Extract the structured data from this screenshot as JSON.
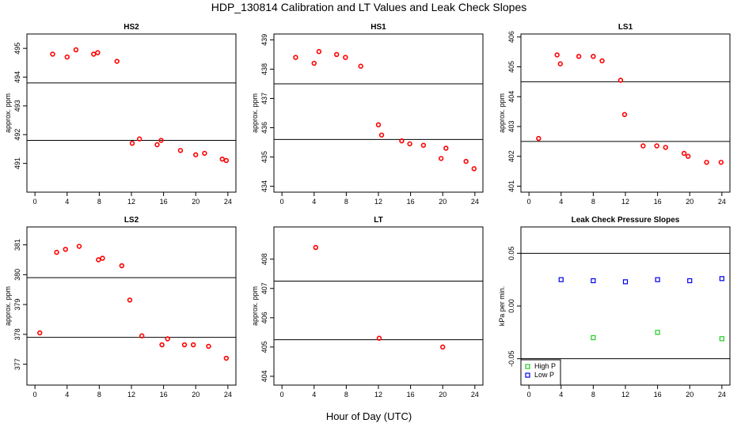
{
  "title": "HDP_130814  Calibration and LT Values and Leak Check Slopes",
  "xlabel": "Hour of Day (UTC)",
  "chart_data": [
    {
      "type": "scatter",
      "name": "HS2",
      "title": "HS2",
      "ylabel": "approx. ppm",
      "xlim": [
        -1,
        25
      ],
      "ylim": [
        490,
        495.5
      ],
      "xticks": [
        "0",
        "4",
        "8",
        "12",
        "16",
        "20",
        "24"
      ],
      "yticks": [
        "491",
        "492",
        "493",
        "494",
        "495"
      ],
      "hlines": [
        493.8,
        491.8
      ],
      "series": [
        {
          "name": "values",
          "color": "#ff0000",
          "x": [
            2.2,
            4.0,
            5.1,
            7.3,
            7.8,
            10.2,
            12.1,
            13.0,
            15.2,
            15.7,
            18.1,
            20.0,
            21.1,
            23.3,
            23.8
          ],
          "y": [
            494.8,
            494.7,
            494.95,
            494.8,
            494.85,
            494.55,
            491.7,
            491.85,
            491.65,
            491.8,
            491.45,
            491.3,
            491.35,
            491.15,
            491.1
          ]
        }
      ]
    },
    {
      "type": "scatter",
      "name": "HS1",
      "title": "HS1",
      "ylabel": "approx. ppm",
      "xlim": [
        -1,
        25
      ],
      "ylim": [
        433.8,
        439.2
      ],
      "xticks": [
        "0",
        "4",
        "8",
        "12",
        "16",
        "20",
        "24"
      ],
      "yticks": [
        "434",
        "435",
        "436",
        "437",
        "438",
        "439"
      ],
      "hlines": [
        437.5,
        435.6
      ],
      "series": [
        {
          "name": "values",
          "color": "#ff0000",
          "x": [
            1.7,
            4.0,
            4.6,
            6.8,
            7.9,
            9.8,
            12.0,
            12.4,
            14.9,
            15.9,
            17.6,
            19.8,
            20.4,
            22.9,
            23.9
          ],
          "y": [
            438.4,
            438.2,
            438.6,
            438.5,
            438.4,
            438.1,
            436.1,
            435.75,
            435.55,
            435.45,
            435.4,
            434.95,
            435.3,
            434.85,
            434.6
          ]
        }
      ]
    },
    {
      "type": "scatter",
      "name": "LS1",
      "title": "LS1",
      "ylabel": "approx. ppm",
      "xlim": [
        -1,
        25
      ],
      "ylim": [
        400.8,
        406.1
      ],
      "xticks": [
        "0",
        "4",
        "8",
        "12",
        "16",
        "20",
        "24"
      ],
      "yticks": [
        "401",
        "402",
        "403",
        "404",
        "405",
        "406"
      ],
      "hlines": [
        404.5,
        402.5
      ],
      "series": [
        {
          "name": "values",
          "color": "#ff0000",
          "x": [
            1.2,
            3.5,
            3.9,
            6.2,
            8.0,
            9.1,
            11.4,
            11.9,
            14.2,
            15.9,
            17.0,
            19.3,
            19.8,
            22.1,
            23.9
          ],
          "y": [
            402.6,
            405.4,
            405.1,
            405.35,
            405.35,
            405.2,
            404.55,
            403.4,
            402.35,
            402.35,
            402.3,
            402.1,
            402.0,
            401.8,
            401.8
          ]
        }
      ]
    },
    {
      "type": "scatter",
      "name": "LS2",
      "title": "LS2",
      "ylabel": "approx. ppm",
      "xlim": [
        -1,
        25
      ],
      "ylim": [
        376.3,
        381.6
      ],
      "xticks": [
        "0",
        "4",
        "8",
        "12",
        "16",
        "20",
        "24"
      ],
      "yticks": [
        "377",
        "378",
        "379",
        "380",
        "381"
      ],
      "hlines": [
        379.9,
        377.9
      ],
      "series": [
        {
          "name": "values",
          "color": "#ff0000",
          "x": [
            0.6,
            2.7,
            3.8,
            5.5,
            7.9,
            8.4,
            10.8,
            11.8,
            13.3,
            15.8,
            16.5,
            18.6,
            19.7,
            21.6,
            23.8
          ],
          "y": [
            378.05,
            380.75,
            380.85,
            380.95,
            380.5,
            380.55,
            380.3,
            379.15,
            377.95,
            377.65,
            377.85,
            377.65,
            377.65,
            377.6,
            377.2
          ]
        }
      ]
    },
    {
      "type": "scatter",
      "name": "LT",
      "title": "LT",
      "ylabel": "approx. ppm",
      "xlim": [
        -1,
        25
      ],
      "ylim": [
        403.7,
        409.1
      ],
      "xticks": [
        "0",
        "4",
        "8",
        "12",
        "16",
        "20",
        "24"
      ],
      "yticks": [
        "404",
        "405",
        "406",
        "407",
        "408"
      ],
      "hlines": [
        407.25,
        405.25
      ],
      "series": [
        {
          "name": "values",
          "color": "#ff0000",
          "x": [
            4.2,
            12.1,
            20.0
          ],
          "y": [
            408.4,
            405.3,
            405.0
          ]
        }
      ]
    },
    {
      "type": "scatter",
      "name": "Leak",
      "title": "Leak Check Pressure Slopes",
      "ylabel": "kPa per min.",
      "xlim": [
        -1,
        25
      ],
      "ylim": [
        -0.075,
        0.075
      ],
      "xticks": [
        "0",
        "4",
        "8",
        "12",
        "16",
        "20",
        "24"
      ],
      "yticks": [
        "-0.05",
        "0.00",
        "0.05"
      ],
      "hlines": [
        0.05,
        -0.05
      ],
      "legend": {
        "position": "bottom-left"
      },
      "series": [
        {
          "name": "High P",
          "color": "#22cc22",
          "x": [
            8.0,
            16.0,
            24.0
          ],
          "y": [
            -0.03,
            -0.025,
            -0.031
          ]
        },
        {
          "name": "Low P",
          "color": "#0000ee",
          "x": [
            4.0,
            8.0,
            12.0,
            16.0,
            20.0,
            24.0
          ],
          "y": [
            0.025,
            0.024,
            0.023,
            0.025,
            0.024,
            0.026
          ]
        }
      ]
    }
  ]
}
